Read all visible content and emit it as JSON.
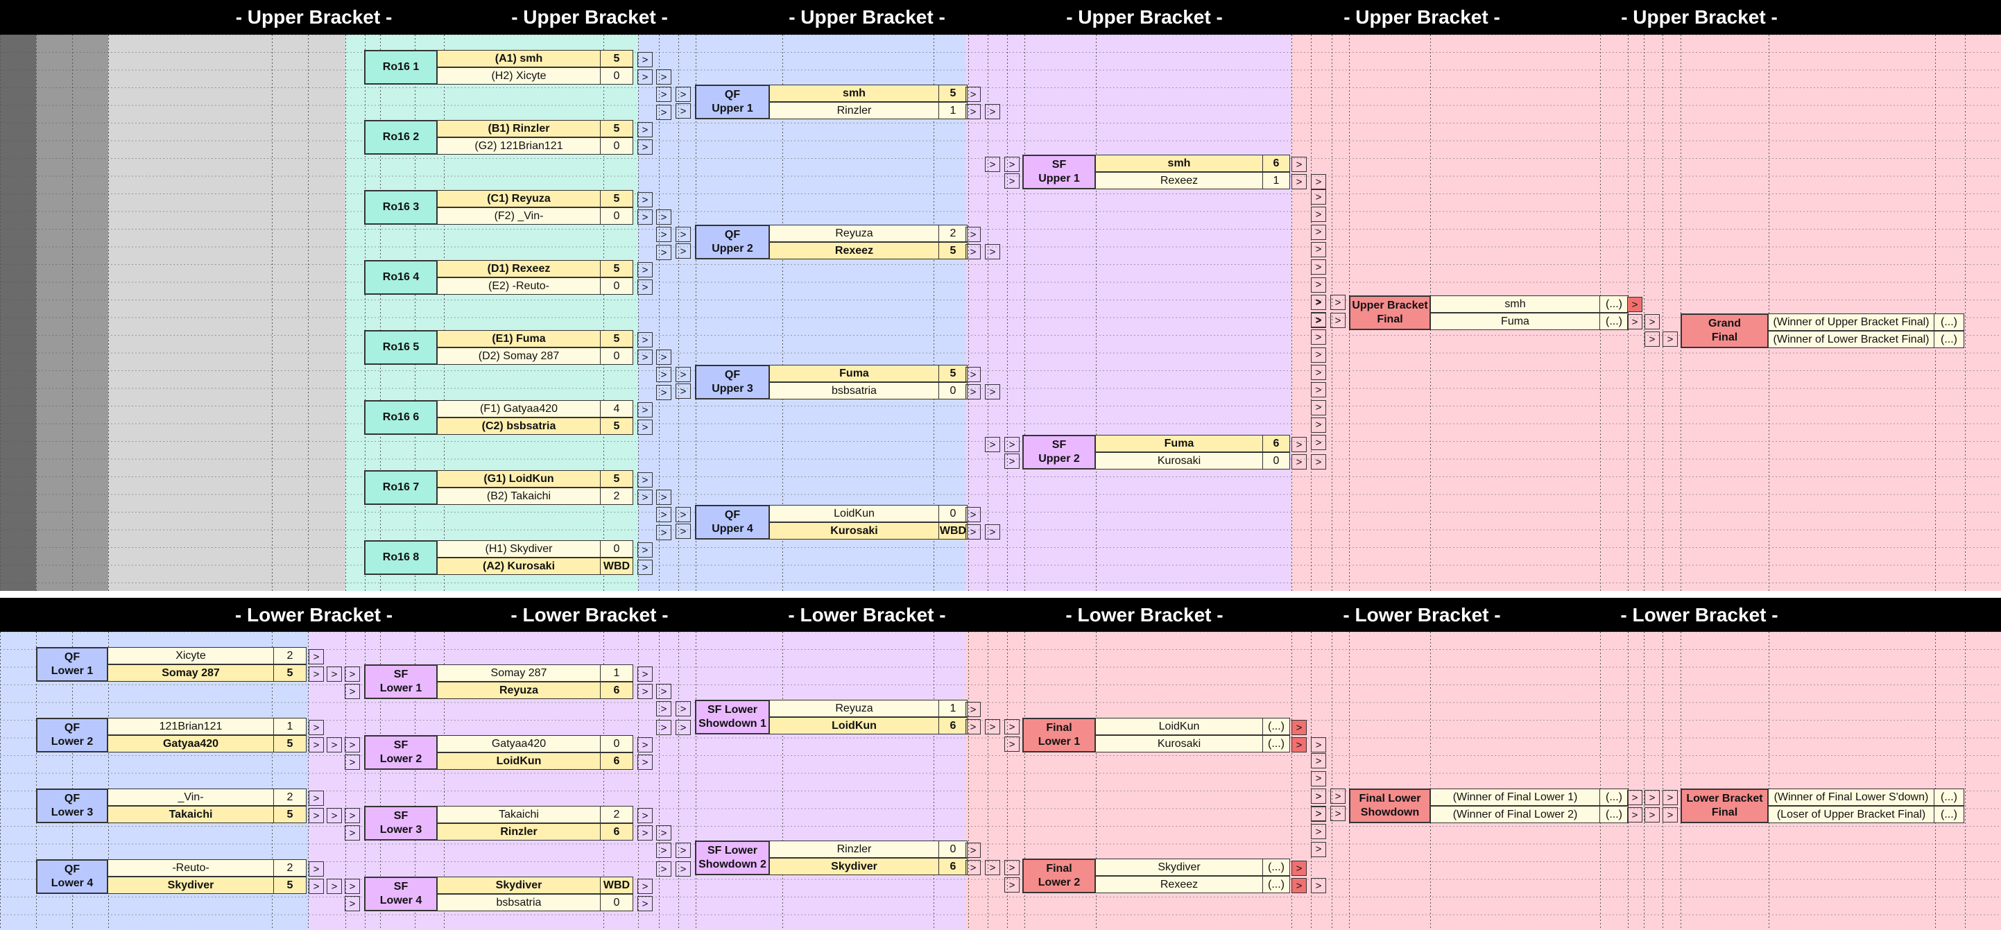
{
  "colors": {
    "header_bg": "#000000",
    "dark_gray": "#6b6b6b",
    "mid_gray": "#9a9a9a",
    "light_gray": "#d6d6d6",
    "teal": "#c8f4ea",
    "blue": "#cfdcff",
    "purple": "#ecd4ff",
    "pink": "#ffd2da",
    "box_teal": "#a8f0e0",
    "box_blue": "#b8c8ff",
    "box_purple": "#e9b8ff",
    "box_red": "#f48c8c",
    "winner_cell": "#fff0b0",
    "loser_cell": "#fffbe0"
  },
  "upper_headers": [
    "- Upper Bracket -",
    "- Upper Bracket -",
    "- Upper Bracket -",
    "- Upper Bracket -",
    "- Upper Bracket -",
    "- Upper Bracket -"
  ],
  "lower_headers": [
    "- Lower Bracket -",
    "- Lower Bracket -",
    "- Lower Bracket -",
    "- Lower Bracket -",
    "- Lower Bracket -",
    "- Lower Bracket -"
  ],
  "arrow_glyph": ">",
  "ro16": [
    {
      "label": "Ro16 1",
      "p1": "(A1) smh",
      "s1": "5",
      "p2": "(H2) Xicyte",
      "s2": "0",
      "w": 1
    },
    {
      "label": "Ro16 2",
      "p1": "(B1) Rinzler",
      "s1": "5",
      "p2": "(G2) 121Brian121",
      "s2": "0",
      "w": 1
    },
    {
      "label": "Ro16 3",
      "p1": "(C1) Reyuza",
      "s1": "5",
      "p2": "(F2) _Vin-",
      "s2": "0",
      "w": 1
    },
    {
      "label": "Ro16 4",
      "p1": "(D1) Rexeez",
      "s1": "5",
      "p2": "(E2) -Reuto-",
      "s2": "0",
      "w": 1
    },
    {
      "label": "Ro16 5",
      "p1": "(E1) Fuma",
      "s1": "5",
      "p2": "(D2) Somay 287",
      "s2": "0",
      "w": 1
    },
    {
      "label": "Ro16 6",
      "p1": "(F1) Gatyaa420",
      "s1": "4",
      "p2": "(C2) bsbsatria",
      "s2": "5",
      "w": 2
    },
    {
      "label": "Ro16 7",
      "p1": "(G1) LoidKun",
      "s1": "5",
      "p2": "(B2) Takaichi",
      "s2": "2",
      "w": 1
    },
    {
      "label": "Ro16 8",
      "p1": "(H1) Skydiver",
      "s1": "0",
      "p2": "(A2) Kurosaki",
      "s2": "WBD",
      "w": 2
    }
  ],
  "qf_upper": [
    {
      "label": "QF\nUpper 1",
      "p1": "smh",
      "s1": "5",
      "p2": "Rinzler",
      "s2": "1",
      "w": 1
    },
    {
      "label": "QF\nUpper 2",
      "p1": "Reyuza",
      "s1": "2",
      "p2": "Rexeez",
      "s2": "5",
      "w": 2
    },
    {
      "label": "QF\nUpper 3",
      "p1": "Fuma",
      "s1": "5",
      "p2": "bsbsatria",
      "s2": "0",
      "w": 1
    },
    {
      "label": "QF\nUpper 4",
      "p1": "LoidKun",
      "s1": "0",
      "p2": "Kurosaki",
      "s2": "WBD",
      "w": 2
    }
  ],
  "sf_upper": [
    {
      "label": "SF\nUpper 1",
      "p1": "smh",
      "s1": "6",
      "p2": "Rexeez",
      "s2": "1",
      "w": 1
    },
    {
      "label": "SF\nUpper 2",
      "p1": "Fuma",
      "s1": "6",
      "p2": "Kurosaki",
      "s2": "0",
      "w": 1
    }
  ],
  "ub_final": {
    "label": "Upper Bracket\nFinal",
    "p1": "smh",
    "s1": "(...)",
    "p2": "Fuma",
    "s2": "(...)"
  },
  "grand_final": {
    "label": "Grand\nFinal",
    "p1": "(Winner of Upper Bracket Final)",
    "s1": "(...)",
    "p2": "(Winner of Lower Bracket Final)",
    "s2": "(...)"
  },
  "qf_lower": [
    {
      "label": "QF\nLower 1",
      "p1": "Xicyte",
      "s1": "2",
      "p2": "Somay 287",
      "s2": "5",
      "w": 2
    },
    {
      "label": "QF\nLower 2",
      "p1": "121Brian121",
      "s1": "1",
      "p2": "Gatyaa420",
      "s2": "5",
      "w": 2
    },
    {
      "label": "QF\nLower 3",
      "p1": "_Vin-",
      "s1": "2",
      "p2": "Takaichi",
      "s2": "5",
      "w": 2
    },
    {
      "label": "QF\nLower 4",
      "p1": "-Reuto-",
      "s1": "2",
      "p2": "Skydiver",
      "s2": "5",
      "w": 2
    }
  ],
  "sf_lower": [
    {
      "label": "SF\nLower 1",
      "p1": "Somay 287",
      "s1": "1",
      "p2": "Reyuza",
      "s2": "6",
      "w": 2
    },
    {
      "label": "SF\nLower 2",
      "p1": "Gatyaa420",
      "s1": "0",
      "p2": "LoidKun",
      "s2": "6",
      "w": 2
    },
    {
      "label": "SF\nLower 3",
      "p1": "Takaichi",
      "s1": "2",
      "p2": "Rinzler",
      "s2": "6",
      "w": 2
    },
    {
      "label": "SF\nLower 4",
      "p1": "Skydiver",
      "s1": "WBD",
      "p2": "bsbsatria",
      "s2": "0",
      "w": 1
    }
  ],
  "sf_lower_showdown": [
    {
      "label": "SF Lower\nShowdown 1",
      "p1": "Reyuza",
      "s1": "1",
      "p2": "LoidKun",
      "s2": "6",
      "w": 2
    },
    {
      "label": "SF Lower\nShowdown 2",
      "p1": "Rinzler",
      "s1": "0",
      "p2": "Skydiver",
      "s2": "6",
      "w": 2
    }
  ],
  "final_lower": [
    {
      "label": "Final\nLower 1",
      "p1": "LoidKun",
      "s1": "(...)",
      "p2": "Kurosaki",
      "s2": "(...)",
      "w": 0
    },
    {
      "label": "Final\nLower 2",
      "p1": "Skydiver",
      "s1": "(...)",
      "p2": "Rexeez",
      "s2": "(...)",
      "w": 0
    }
  ],
  "final_lower_showdown": {
    "label": "Final Lower\nShowdown",
    "p1": "(Winner of Final Lower 1)",
    "s1": "(...)",
    "p2": "(Winner of Final Lower 2)",
    "s2": "(...)"
  },
  "lb_final": {
    "label": "Lower Bracket\nFinal",
    "p1": "(Winner of Final Lower S'down)",
    "s1": "(...)",
    "p2": "(Loser of Upper Bracket Final)",
    "s2": "(...)"
  }
}
